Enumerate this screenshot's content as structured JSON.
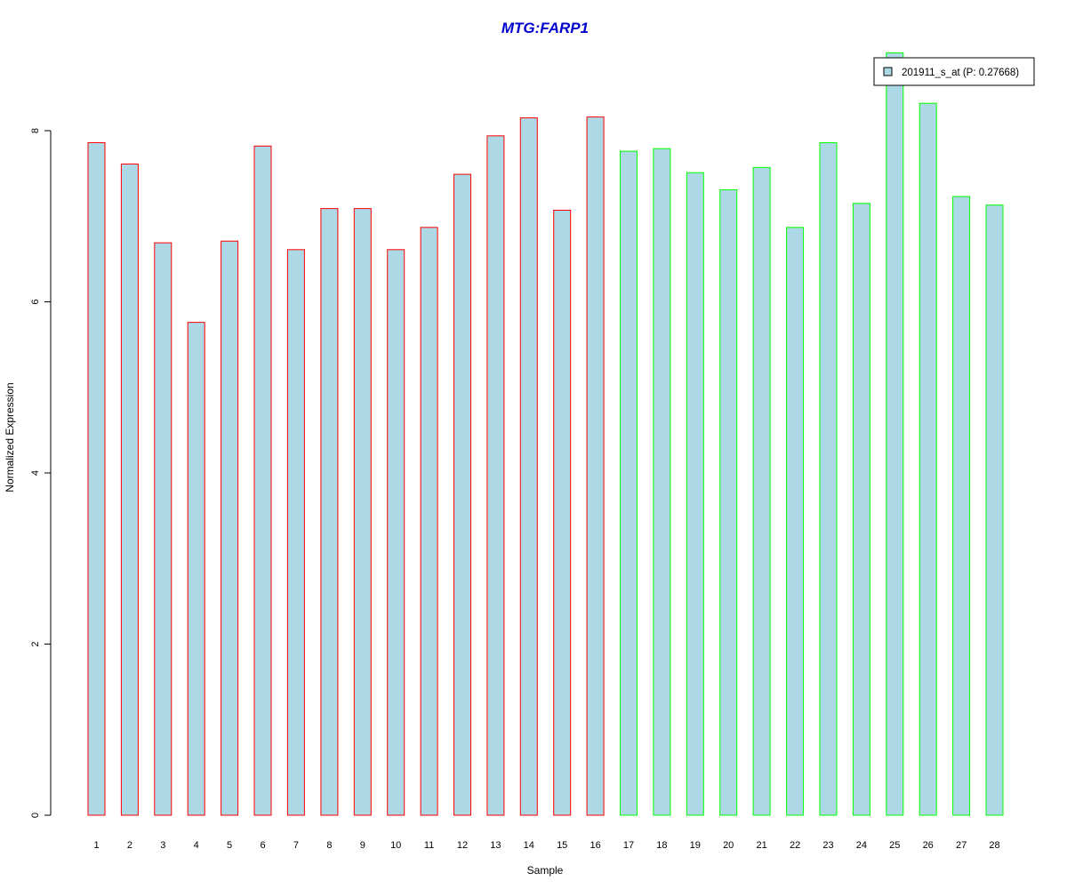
{
  "chart_data": {
    "type": "bar",
    "title": "MTG:FARP1",
    "xlabel": "Sample",
    "ylabel": "Normalized Expression",
    "ylim": [
      0,
      9
    ],
    "yticks": [
      0,
      2,
      4,
      6,
      8
    ],
    "categories": [
      "1",
      "2",
      "3",
      "4",
      "5",
      "6",
      "7",
      "8",
      "9",
      "10",
      "11",
      "12",
      "13",
      "14",
      "15",
      "16",
      "17",
      "18",
      "19",
      "20",
      "21",
      "22",
      "23",
      "24",
      "25",
      "26",
      "27",
      "28"
    ],
    "series": [
      {
        "name": "201911_s_at (P: 0.27668)",
        "values": [
          7.86,
          7.61,
          6.69,
          5.76,
          6.71,
          7.82,
          6.61,
          7.09,
          7.09,
          6.61,
          6.87,
          7.49,
          7.94,
          8.15,
          7.07,
          8.16,
          7.76,
          7.79,
          7.51,
          7.31,
          7.57,
          6.87,
          7.86,
          7.15,
          8.91,
          8.32,
          7.23,
          7.13
        ]
      }
    ],
    "groups": [
      {
        "range": [
          1,
          16
        ],
        "border_color": "#ff0000"
      },
      {
        "range": [
          17,
          28
        ],
        "border_color": "#00ff00"
      }
    ],
    "fill_color": "#add8e6",
    "title_color": "#0000cc",
    "legend_position": "top-right",
    "grid": false
  }
}
